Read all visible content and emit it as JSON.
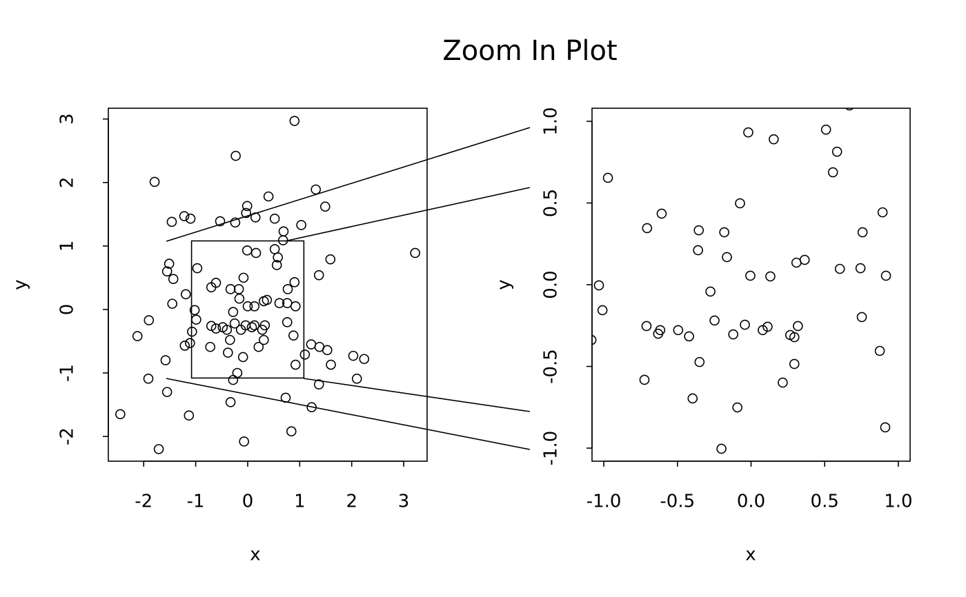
{
  "chart_data": [
    {
      "type": "scatter",
      "title": "Zoom In Plot",
      "xlabel": "x",
      "ylabel": "y",
      "xlim": [
        -2.68,
        3.45
      ],
      "ylim": [
        -2.39,
        3.17
      ],
      "xticks": [
        -2,
        -1,
        0,
        1,
        2,
        3
      ],
      "yticks": [
        -2,
        -1,
        0,
        1,
        2,
        3
      ],
      "color": "#000000",
      "x": [
        -2.45,
        -2.12,
        -1.9,
        -1.91,
        -1.79,
        -1.71,
        -1.58,
        -1.55,
        -1.55,
        -1.51,
        -1.46,
        -1.43,
        -1.45,
        -1.22,
        -1.19,
        -1.21,
        -1.13,
        -1.1,
        -1.11,
        -1.07,
        -1.02,
        -0.99,
        -0.97,
        -0.72,
        -0.7,
        -0.7,
        -0.61,
        -0.61,
        -0.53,
        -0.48,
        -0.4,
        -0.38,
        -0.34,
        -0.33,
        -0.33,
        -0.28,
        -0.2,
        -0.28,
        -0.25,
        -0.24,
        -0.23,
        -0.17,
        -0.16,
        -0.13,
        -0.09,
        -0.08,
        -0.07,
        -0.04,
        -0.03,
        -0.01,
        -0.01,
        0.0,
        0.08,
        0.13,
        0.13,
        0.15,
        0.16,
        0.21,
        0.28,
        0.31,
        0.31,
        0.33,
        0.37,
        0.4,
        0.52,
        0.52,
        0.56,
        0.58,
        0.61,
        0.68,
        0.69,
        0.73,
        0.76,
        0.76,
        0.77,
        0.84,
        0.88,
        0.9,
        0.9,
        0.92,
        0.92,
        1.03,
        1.1,
        1.22,
        1.23,
        1.31,
        1.37,
        1.38,
        1.37,
        1.49,
        1.53,
        1.59,
        1.6,
        2.03,
        2.1,
        2.24,
        3.22
      ],
      "values": [
        -1.65,
        -0.42,
        -0.17,
        -1.09,
        2.01,
        -2.2,
        -0.8,
        -1.3,
        0.6,
        0.72,
        1.38,
        0.48,
        0.09,
        1.47,
        0.24,
        -0.57,
        -1.67,
        1.43,
        -0.53,
        -0.35,
        -0.01,
        -0.16,
        0.65,
        -0.59,
        0.35,
        -0.26,
        0.42,
        -0.3,
        1.39,
        -0.28,
        -0.32,
        -0.68,
        -0.48,
        0.32,
        -1.46,
        -1.11,
        -1.0,
        -0.04,
        -0.22,
        1.37,
        2.42,
        0.32,
        0.17,
        -0.32,
        -0.75,
        0.5,
        -2.08,
        -0.25,
        1.52,
        1.63,
        0.93,
        0.05,
        -0.28,
        -0.25,
        0.05,
        1.45,
        0.89,
        -0.59,
        -0.32,
        -0.48,
        0.13,
        -0.25,
        0.15,
        1.78,
        1.43,
        0.95,
        0.7,
        0.82,
        0.1,
        1.09,
        1.23,
        -1.39,
        -0.2,
        0.1,
        0.32,
        -1.92,
        -0.41,
        2.97,
        0.43,
        -0.87,
        0.05,
        1.33,
        -0.71,
        -0.55,
        -1.54,
        1.89,
        0.54,
        -0.59,
        -1.18,
        1.62,
        -0.64,
        0.79,
        -0.87,
        -0.73,
        -1.09,
        -0.78,
        0.89
      ]
    },
    {
      "type": "scatter",
      "xlabel": "x",
      "ylabel": "y",
      "xlim": [
        -1.08,
        1.08
      ],
      "ylim": [
        -1.08,
        1.08
      ],
      "xticks": [
        {
          "value": -1,
          "label": "-1.0"
        },
        -0.5,
        {
          "value": 0,
          "label": "0.0"
        },
        0.5,
        {
          "value": 1,
          "label": "1.0"
        }
      ],
      "yticks": [
        {
          "value": -1,
          "label": "-1.0"
        },
        -0.5,
        {
          "value": 0,
          "label": "0.0"
        },
        0.5,
        {
          "value": 1,
          "label": "1.0"
        }
      ],
      "color": "#000000",
      "x": [
        -1.084,
        -1.033,
        -1.009,
        -0.972,
        -0.706,
        -0.71,
        -0.631,
        -0.617,
        -0.607,
        -0.724,
        -0.495,
        -0.421,
        -0.397,
        -0.355,
        -0.36,
        -0.35,
        -0.276,
        -0.248,
        -0.201,
        -0.182,
        -0.164,
        -0.121,
        -0.093,
        -0.075,
        -0.042,
        -0.019,
        -0.005,
        0.079,
        0.112,
        0.131,
        0.154,
        0.215,
        0.266,
        0.294,
        0.294,
        0.308,
        0.318,
        0.364,
        0.509,
        0.556,
        0.584,
        0.603,
        0.668,
        0.743,
        0.752,
        0.757,
        0.874,
        0.893,
        0.916,
        0.911
      ],
      "values": [
        -0.338,
        -0.004,
        -0.156,
        0.654,
        0.346,
        -0.253,
        -0.3,
        -0.278,
        0.435,
        -0.582,
        -0.278,
        -0.316,
        -0.696,
        0.333,
        0.211,
        -0.473,
        -0.042,
        -0.219,
        -1.004,
        0.321,
        0.169,
        -0.304,
        -0.751,
        0.498,
        -0.245,
        0.932,
        0.055,
        -0.278,
        -0.257,
        0.051,
        0.89,
        -0.599,
        -0.308,
        -0.321,
        -0.485,
        0.135,
        -0.253,
        0.152,
        0.949,
        0.688,
        0.814,
        0.097,
        1.097,
        0.101,
        -0.198,
        0.321,
        -0.405,
        0.443,
        0.055,
        -0.873
      ]
    }
  ]
}
